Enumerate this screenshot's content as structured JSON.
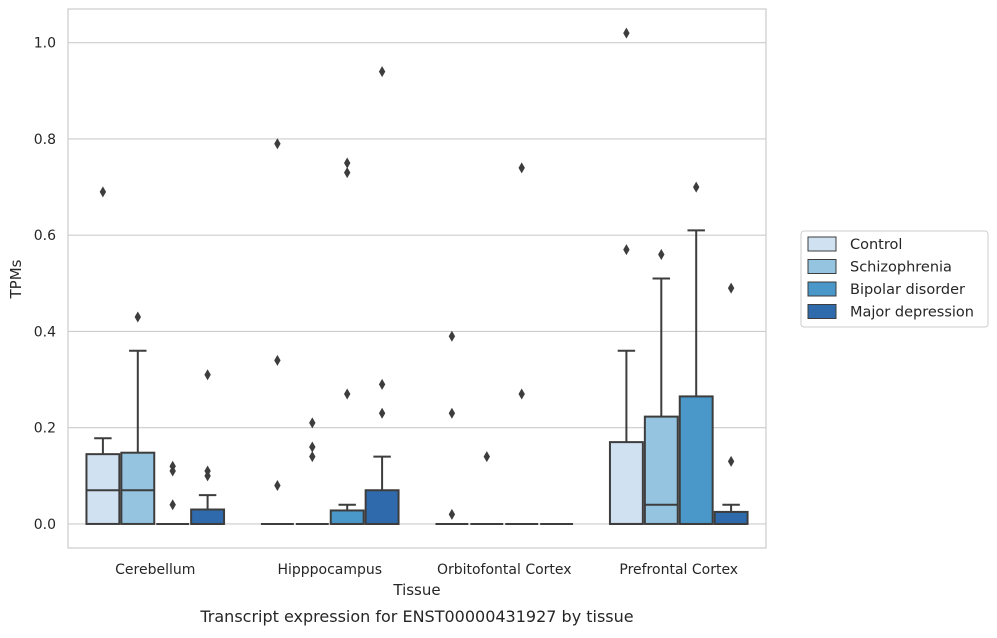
{
  "caption": "Transcript expression for ENST00000431927 by tissue",
  "colors": {
    "Control": "#d0e1f2",
    "Schizophrenia": "#94c4df",
    "Bipolar disorder": "#4a98c9",
    "Major depression": "#2e6aac",
    "edge": "#3d3d3d",
    "grid": "#cccccc",
    "frame": "#cccccc"
  },
  "chart_data": {
    "type": "box",
    "xlabel": "Tissue",
    "ylabel": "TPMs",
    "ylim": [
      -0.05,
      1.07
    ],
    "yticks": [
      "0.0",
      "0.2",
      "0.4",
      "0.6",
      "0.8",
      "1.0"
    ],
    "grid": true,
    "legend_position": "right",
    "categories": [
      "Cerebellum",
      "Hipppocampus",
      "Orbitofontal Cortex",
      "Prefrontal Cortex"
    ],
    "series": [
      {
        "name": "Control",
        "boxes": [
          {
            "whislo": 0.0,
            "q1": 0.0,
            "med": 0.07,
            "q3": 0.145,
            "whishi": 0.178,
            "fliers": [
              0.69
            ]
          },
          {
            "whislo": 0.0,
            "q1": 0.0,
            "med": 0.0,
            "q3": 0.0,
            "whishi": 0.0,
            "fliers": [
              0.79,
              0.34,
              0.08
            ]
          },
          {
            "whislo": 0.0,
            "q1": 0.0,
            "med": 0.0,
            "q3": 0.0,
            "whishi": 0.0,
            "fliers": [
              0.39,
              0.23,
              0.02
            ]
          },
          {
            "whislo": 0.0,
            "q1": 0.0,
            "med": 0.0,
            "q3": 0.17,
            "whishi": 0.36,
            "fliers": [
              1.02,
              0.57
            ]
          }
        ]
      },
      {
        "name": "Schizophrenia",
        "boxes": [
          {
            "whislo": 0.0,
            "q1": 0.0,
            "med": 0.07,
            "q3": 0.148,
            "whishi": 0.36,
            "fliers": [
              0.43
            ]
          },
          {
            "whislo": 0.0,
            "q1": 0.0,
            "med": 0.0,
            "q3": 0.0,
            "whishi": 0.0,
            "fliers": [
              0.21,
              0.16,
              0.14
            ]
          },
          {
            "whislo": 0.0,
            "q1": 0.0,
            "med": 0.0,
            "q3": 0.0,
            "whishi": 0.0,
            "fliers": [
              0.14
            ]
          },
          {
            "whislo": 0.0,
            "q1": 0.0,
            "med": 0.04,
            "q3": 0.223,
            "whishi": 0.51,
            "fliers": [
              0.56
            ]
          }
        ]
      },
      {
        "name": "Bipolar disorder",
        "boxes": [
          {
            "whislo": 0.0,
            "q1": 0.0,
            "med": 0.0,
            "q3": 0.0,
            "whishi": 0.0,
            "fliers": [
              0.12,
              0.11,
              0.04
            ]
          },
          {
            "whislo": 0.0,
            "q1": 0.0,
            "med": 0.0,
            "q3": 0.028,
            "whishi": 0.04,
            "fliers": [
              0.75,
              0.73,
              0.27
            ]
          },
          {
            "whislo": 0.0,
            "q1": 0.0,
            "med": 0.0,
            "q3": 0.0,
            "whishi": 0.0,
            "fliers": [
              0.74,
              0.27
            ]
          },
          {
            "whislo": 0.0,
            "q1": 0.0,
            "med": 0.0,
            "q3": 0.265,
            "whishi": 0.61,
            "fliers": [
              0.7
            ]
          }
        ]
      },
      {
        "name": "Major depression",
        "boxes": [
          {
            "whislo": 0.0,
            "q1": 0.0,
            "med": 0.0,
            "q3": 0.03,
            "whishi": 0.06,
            "fliers": [
              0.31,
              0.11,
              0.1
            ]
          },
          {
            "whislo": 0.0,
            "q1": 0.0,
            "med": 0.0,
            "q3": 0.07,
            "whishi": 0.14,
            "fliers": [
              0.94,
              0.29,
              0.23
            ]
          },
          {
            "whislo": 0.0,
            "q1": 0.0,
            "med": 0.0,
            "q3": 0.0,
            "whishi": 0.0,
            "fliers": []
          },
          {
            "whislo": 0.0,
            "q1": 0.0,
            "med": 0.0,
            "q3": 0.025,
            "whishi": 0.04,
            "fliers": [
              0.49,
              0.13
            ]
          }
        ]
      }
    ]
  }
}
